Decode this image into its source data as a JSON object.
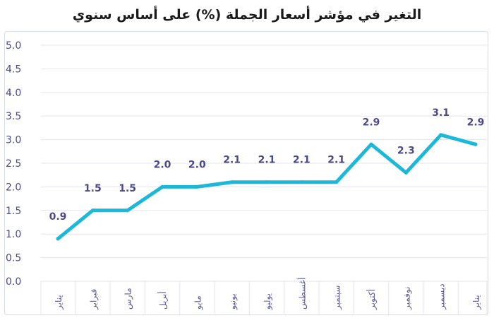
{
  "chart_data": {
    "type": "line",
    "title": "التغير في مؤشر أسعار الجملة (%) على أساس سنوي",
    "categories": [
      "يناير",
      "فبراير",
      "مارس",
      "أبريل",
      "مايو",
      "يونيو",
      "يوليو",
      "أغسطس",
      "سبتمبر",
      "أكتوبر",
      "نوفمبر",
      "ديسمبر",
      "يناير"
    ],
    "values": [
      0.9,
      1.5,
      1.5,
      2.0,
      2.0,
      2.1,
      2.1,
      2.1,
      2.1,
      2.9,
      2.3,
      3.1,
      2.9
    ],
    "data_labels": [
      "0.9",
      "1.5",
      "1.5",
      "2.0",
      "2.0",
      "2.1",
      "2.1",
      "2.1",
      "2.1",
      "2.9",
      "2.3",
      "3.1",
      "2.9"
    ],
    "value_label_indices": [
      0,
      1,
      2,
      3,
      4,
      5,
      6,
      7,
      8,
      9,
      10,
      11,
      12
    ],
    "yticks": [
      "0.0",
      "0.5",
      "1.0",
      "1.5",
      "2.0",
      "2.5",
      "3.0",
      "3.5",
      "4.0",
      "4.5",
      "5.0"
    ],
    "ylim": [
      0,
      5
    ],
    "xlabel": "",
    "ylabel": "",
    "grid": true,
    "line_color": "#1db8d8",
    "grid_color": "#e3e5ef",
    "label_color": "#4a4a8a"
  }
}
